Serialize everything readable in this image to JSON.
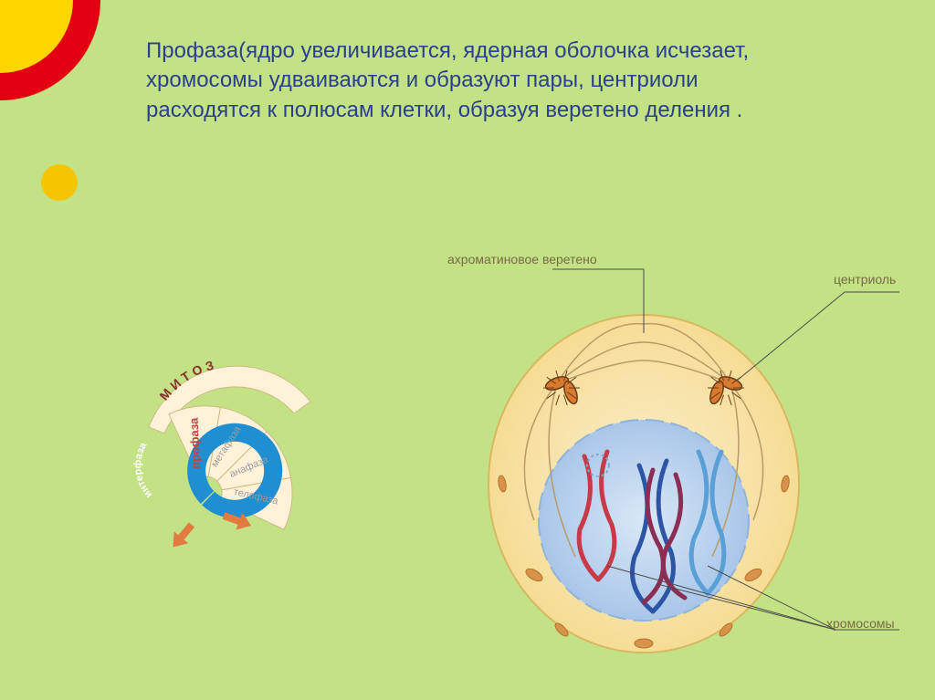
{
  "background_color": "#c2e285",
  "corner_circles": {
    "outer_color": "#e30013",
    "inner_color": "#ffd600",
    "small_color": "#f6c500",
    "outer_r": 110,
    "inner_r": 80,
    "small_r": 20
  },
  "title": {
    "text": "Профаза(ядро увеличивается, ядерная оболочка исчезает, хромосомы удваиваются и образуют пары, центриоли расходятся к полюсам клетки, образуя веретено деления .",
    "color": "#2d3e8f",
    "fontsize": 24,
    "fontweight": "400"
  },
  "fan": {
    "arc_label": "М  И  Т  О  З",
    "arc_label_color": "#88312c",
    "interphase_label": "интерфаза",
    "interphase_color": "#1f8fd1",
    "segments": [
      {
        "label": "профаза",
        "color": "#c74042",
        "active": true
      },
      {
        "label": "метафаза",
        "color": "#9a9a9a",
        "active": false
      },
      {
        "label": "анафаза",
        "color": "#9a9a9a",
        "active": false
      },
      {
        "label": "телофаза",
        "color": "#9a9a9a",
        "active": false
      }
    ],
    "fan_fill": "#fff2d9",
    "fan_border": "#d0b880",
    "arrow_color": "#e37a3f"
  },
  "cell": {
    "labels": {
      "spindle": "ахроматиновое веретено",
      "centriole": "центриоль",
      "chromosomes": "хромосомы"
    },
    "label_color": "#7a6a45",
    "label_fontsize": 14,
    "membrane_outer": "#f4d98a",
    "membrane_inner": "#fceecb",
    "nucleus_outer": "#9fbfe7",
    "nucleus_inner": "#d9e8f5",
    "centriole_colors": {
      "body": "#d97b2e",
      "ring": "#6b3b18"
    },
    "spindle_color": "#b99b68",
    "chromosome_colors": [
      "#c73a4a",
      "#2c55a5",
      "#5aa0d6",
      "#8c2e54"
    ],
    "leader_color": "#4a4a4a"
  }
}
